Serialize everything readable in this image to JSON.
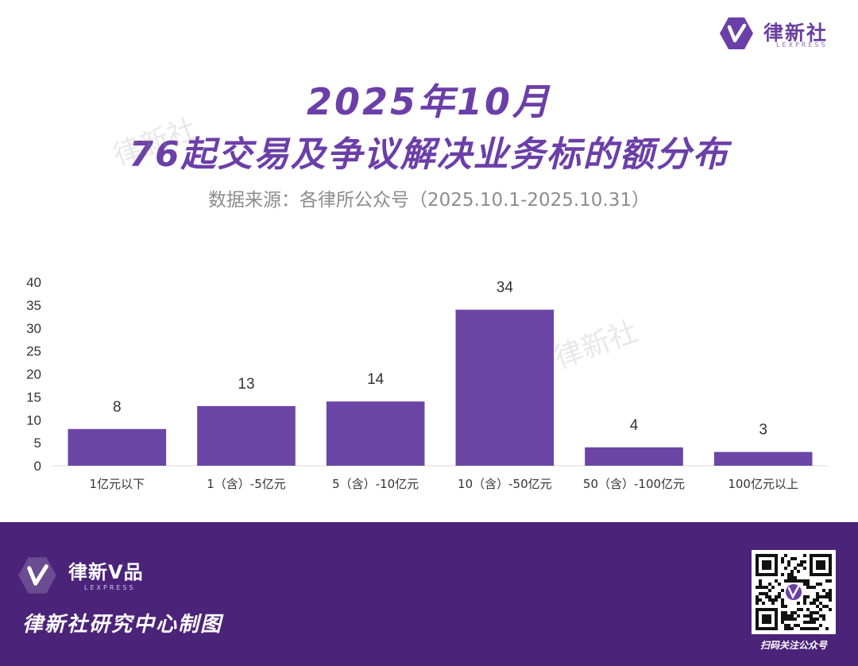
{
  "brand": {
    "name": "律新社",
    "sub": "LEXPRESS"
  },
  "title": {
    "line1": "2025年10月",
    "line2": "76起交易及争议解决业务标的额分布"
  },
  "source": "数据来源：各律所公众号（2025.10.1-2025.10.31）",
  "watermark": "律新社",
  "chart_data": {
    "type": "bar",
    "categories": [
      "1亿元以下",
      "1（含）-5亿元",
      "5（含）-10亿元",
      "10（含）-50亿元",
      "50（含）-100亿元",
      "100亿元以上"
    ],
    "values": [
      8,
      13,
      14,
      34,
      4,
      3
    ],
    "yticks": [
      "0",
      "5",
      "10",
      "15",
      "20",
      "25",
      "30",
      "35",
      "40"
    ],
    "ylim": [
      0,
      40
    ],
    "title": "",
    "xlabel": "",
    "ylabel": "",
    "bar_color": "#6b46a6",
    "grid": false,
    "data_labels": true
  },
  "footer": {
    "brand_name": "律新V品",
    "brand_sub": "LEXPRESS",
    "maker": "律新社研究中心制图",
    "qr_label": "扫码关注公众号",
    "background": "#4b2479"
  }
}
